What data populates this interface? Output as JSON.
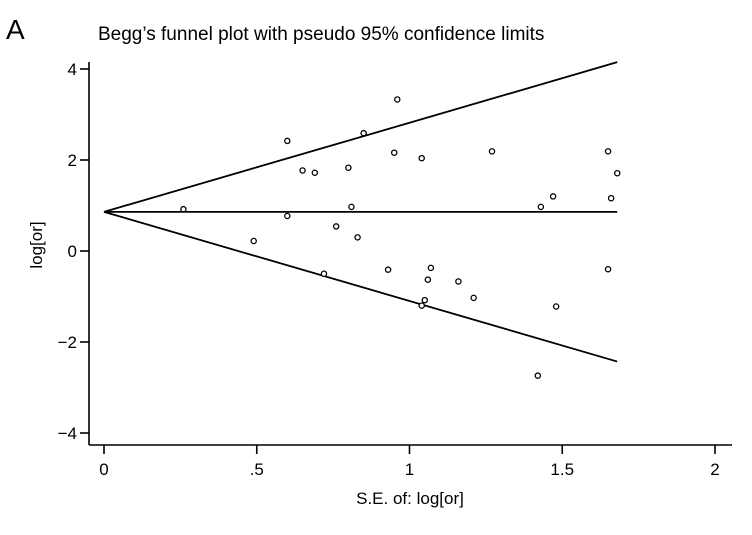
{
  "panel_label": "A",
  "chart_data": {
    "type": "scatter",
    "title": "Begg’s funnel plot with pseudo 95% confidence limits",
    "xlabel": "S.E. of: log[or]",
    "ylabel": "log[or]",
    "xlim": [
      0,
      2
    ],
    "ylim": [
      -4,
      4
    ],
    "x_ticks": [
      0,
      0.5,
      1,
      1.5,
      2
    ],
    "x_tick_labels": [
      "0",
      ".5",
      "1",
      "1.5",
      "2"
    ],
    "y_ticks": [
      -4,
      -2,
      0,
      2,
      4
    ],
    "y_tick_labels": [
      "−4",
      "−2",
      "0",
      "2",
      "4"
    ],
    "pooled_estimate": 0.86,
    "se_max": 1.68,
    "lines": [
      {
        "name": "upper",
        "x": [
          0,
          1.68
        ],
        "y": [
          0.86,
          4.15
        ]
      },
      {
        "name": "pooled",
        "x": [
          0,
          1.68
        ],
        "y": [
          0.86,
          0.86
        ]
      },
      {
        "name": "lower",
        "x": [
          0,
          1.68
        ],
        "y": [
          0.86,
          -2.43
        ]
      }
    ],
    "points": [
      [
        0.26,
        0.92
      ],
      [
        0.49,
        0.22
      ],
      [
        0.6,
        2.42
      ],
      [
        0.6,
        0.77
      ],
      [
        0.65,
        1.77
      ],
      [
        0.69,
        1.72
      ],
      [
        0.72,
        -0.5
      ],
      [
        0.76,
        0.54
      ],
      [
        0.8,
        1.83
      ],
      [
        0.81,
        0.97
      ],
      [
        0.83,
        0.3
      ],
      [
        0.85,
        2.59
      ],
      [
        0.93,
        -0.41
      ],
      [
        0.95,
        2.16
      ],
      [
        0.96,
        3.33
      ],
      [
        1.04,
        2.04
      ],
      [
        1.04,
        -1.2
      ],
      [
        1.05,
        -1.08
      ],
      [
        1.06,
        -0.63
      ],
      [
        1.07,
        -0.37
      ],
      [
        1.16,
        -0.67
      ],
      [
        1.21,
        -1.03
      ],
      [
        1.27,
        2.19
      ],
      [
        1.42,
        -2.74
      ],
      [
        1.43,
        0.97
      ],
      [
        1.47,
        1.2
      ],
      [
        1.48,
        -1.22
      ],
      [
        1.65,
        2.19
      ],
      [
        1.65,
        -0.4
      ],
      [
        1.66,
        1.16
      ],
      [
        1.68,
        1.71
      ]
    ],
    "grid": false,
    "legend": "none"
  }
}
